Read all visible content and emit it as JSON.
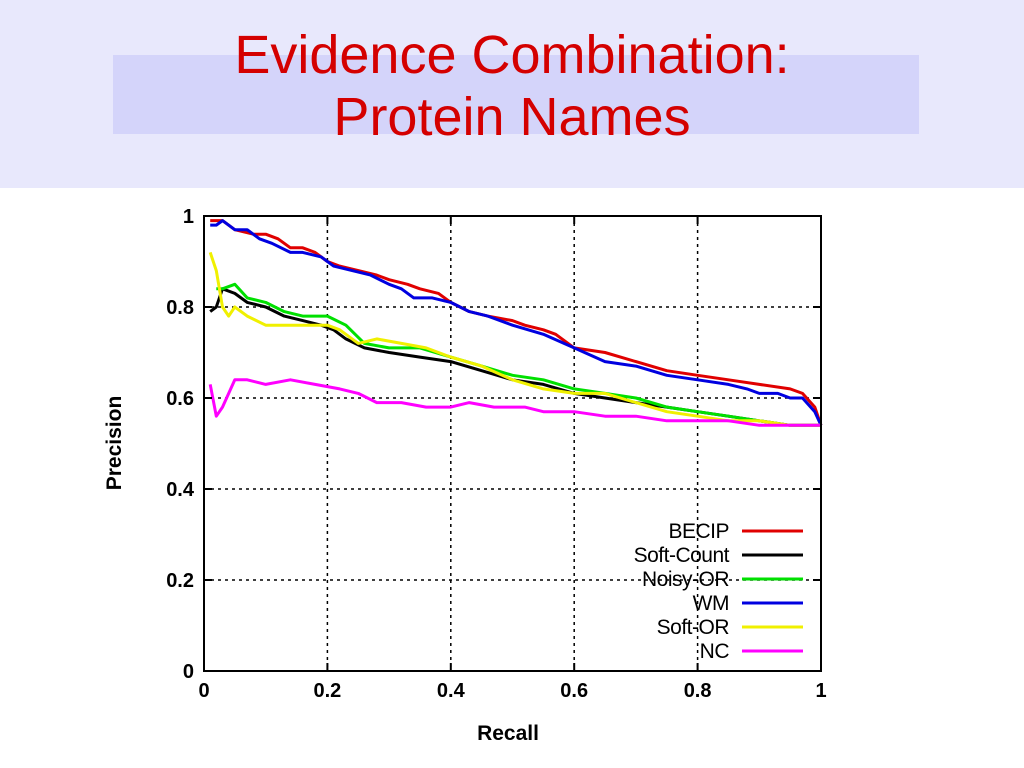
{
  "slide": {
    "title_line1": "Evidence Combination:",
    "title_line2": "Protein Names"
  },
  "chart_data": {
    "type": "line",
    "xlabel": "Recall",
    "ylabel": "Precision",
    "xlim": [
      0,
      1
    ],
    "ylim": [
      0,
      1
    ],
    "xticks": [
      "0",
      "0.2",
      "0.4",
      "0.6",
      "0.8",
      "1"
    ],
    "yticks": [
      "0",
      "0.2",
      "0.4",
      "0.6",
      "0.8",
      "1"
    ],
    "grid": true,
    "legend_position": "bottom-right",
    "series": [
      {
        "name": "BECIP",
        "color": "#e00000",
        "points": [
          [
            0.01,
            0.99
          ],
          [
            0.03,
            0.99
          ],
          [
            0.05,
            0.97
          ],
          [
            0.08,
            0.96
          ],
          [
            0.1,
            0.96
          ],
          [
            0.12,
            0.95
          ],
          [
            0.14,
            0.93
          ],
          [
            0.16,
            0.93
          ],
          [
            0.18,
            0.92
          ],
          [
            0.2,
            0.9
          ],
          [
            0.22,
            0.89
          ],
          [
            0.25,
            0.88
          ],
          [
            0.28,
            0.87
          ],
          [
            0.3,
            0.86
          ],
          [
            0.33,
            0.85
          ],
          [
            0.35,
            0.84
          ],
          [
            0.38,
            0.83
          ],
          [
            0.4,
            0.81
          ],
          [
            0.43,
            0.79
          ],
          [
            0.46,
            0.78
          ],
          [
            0.5,
            0.77
          ],
          [
            0.52,
            0.76
          ],
          [
            0.55,
            0.75
          ],
          [
            0.57,
            0.74
          ],
          [
            0.6,
            0.71
          ],
          [
            0.65,
            0.7
          ],
          [
            0.7,
            0.68
          ],
          [
            0.75,
            0.66
          ],
          [
            0.8,
            0.65
          ],
          [
            0.85,
            0.64
          ],
          [
            0.9,
            0.63
          ],
          [
            0.95,
            0.62
          ],
          [
            0.97,
            0.61
          ],
          [
            0.99,
            0.58
          ],
          [
            1.0,
            0.54
          ]
        ]
      },
      {
        "name": "Soft-Count",
        "color": "#000000",
        "points": [
          [
            0.01,
            0.79
          ],
          [
            0.02,
            0.8
          ],
          [
            0.03,
            0.84
          ],
          [
            0.05,
            0.83
          ],
          [
            0.07,
            0.81
          ],
          [
            0.1,
            0.8
          ],
          [
            0.13,
            0.78
          ],
          [
            0.16,
            0.77
          ],
          [
            0.19,
            0.76
          ],
          [
            0.21,
            0.75
          ],
          [
            0.23,
            0.73
          ],
          [
            0.26,
            0.71
          ],
          [
            0.3,
            0.7
          ],
          [
            0.35,
            0.69
          ],
          [
            0.4,
            0.68
          ],
          [
            0.45,
            0.66
          ],
          [
            0.5,
            0.64
          ],
          [
            0.55,
            0.63
          ],
          [
            0.6,
            0.61
          ],
          [
            0.65,
            0.6
          ],
          [
            0.7,
            0.59
          ],
          [
            0.75,
            0.58
          ],
          [
            0.8,
            0.57
          ],
          [
            0.85,
            0.56
          ],
          [
            0.9,
            0.55
          ],
          [
            0.95,
            0.54
          ],
          [
            1.0,
            0.54
          ]
        ]
      },
      {
        "name": "Noisy-OR",
        "color": "#00e000",
        "points": [
          [
            0.02,
            0.84
          ],
          [
            0.03,
            0.84
          ],
          [
            0.05,
            0.85
          ],
          [
            0.07,
            0.82
          ],
          [
            0.1,
            0.81
          ],
          [
            0.13,
            0.79
          ],
          [
            0.16,
            0.78
          ],
          [
            0.2,
            0.78
          ],
          [
            0.23,
            0.76
          ],
          [
            0.26,
            0.72
          ],
          [
            0.3,
            0.71
          ],
          [
            0.35,
            0.71
          ],
          [
            0.4,
            0.69
          ],
          [
            0.45,
            0.67
          ],
          [
            0.5,
            0.65
          ],
          [
            0.55,
            0.64
          ],
          [
            0.6,
            0.62
          ],
          [
            0.65,
            0.61
          ],
          [
            0.7,
            0.6
          ],
          [
            0.75,
            0.58
          ],
          [
            0.8,
            0.57
          ],
          [
            0.85,
            0.56
          ],
          [
            0.9,
            0.55
          ],
          [
            0.95,
            0.54
          ],
          [
            1.0,
            0.54
          ]
        ]
      },
      {
        "name": "WM",
        "color": "#0000e0",
        "points": [
          [
            0.01,
            0.98
          ],
          [
            0.02,
            0.98
          ],
          [
            0.03,
            0.99
          ],
          [
            0.05,
            0.97
          ],
          [
            0.07,
            0.97
          ],
          [
            0.09,
            0.95
          ],
          [
            0.11,
            0.94
          ],
          [
            0.14,
            0.92
          ],
          [
            0.16,
            0.92
          ],
          [
            0.19,
            0.91
          ],
          [
            0.21,
            0.89
          ],
          [
            0.24,
            0.88
          ],
          [
            0.27,
            0.87
          ],
          [
            0.3,
            0.85
          ],
          [
            0.32,
            0.84
          ],
          [
            0.34,
            0.82
          ],
          [
            0.37,
            0.82
          ],
          [
            0.4,
            0.81
          ],
          [
            0.43,
            0.79
          ],
          [
            0.46,
            0.78
          ],
          [
            0.5,
            0.76
          ],
          [
            0.55,
            0.74
          ],
          [
            0.6,
            0.71
          ],
          [
            0.65,
            0.68
          ],
          [
            0.7,
            0.67
          ],
          [
            0.75,
            0.65
          ],
          [
            0.8,
            0.64
          ],
          [
            0.85,
            0.63
          ],
          [
            0.88,
            0.62
          ],
          [
            0.9,
            0.61
          ],
          [
            0.93,
            0.61
          ],
          [
            0.95,
            0.6
          ],
          [
            0.97,
            0.6
          ],
          [
            0.99,
            0.57
          ],
          [
            1.0,
            0.54
          ]
        ]
      },
      {
        "name": "Soft-OR",
        "color": "#f0f000",
        "points": [
          [
            0.01,
            0.92
          ],
          [
            0.02,
            0.88
          ],
          [
            0.03,
            0.8
          ],
          [
            0.04,
            0.78
          ],
          [
            0.05,
            0.8
          ],
          [
            0.07,
            0.78
          ],
          [
            0.1,
            0.76
          ],
          [
            0.15,
            0.76
          ],
          [
            0.2,
            0.76
          ],
          [
            0.22,
            0.75
          ],
          [
            0.25,
            0.72
          ],
          [
            0.28,
            0.73
          ],
          [
            0.32,
            0.72
          ],
          [
            0.36,
            0.71
          ],
          [
            0.4,
            0.69
          ],
          [
            0.45,
            0.67
          ],
          [
            0.5,
            0.64
          ],
          [
            0.55,
            0.62
          ],
          [
            0.6,
            0.61
          ],
          [
            0.65,
            0.61
          ],
          [
            0.7,
            0.59
          ],
          [
            0.75,
            0.57
          ],
          [
            0.8,
            0.56
          ],
          [
            0.85,
            0.55
          ],
          [
            0.9,
            0.55
          ],
          [
            0.95,
            0.54
          ],
          [
            1.0,
            0.54
          ]
        ]
      },
      {
        "name": "NC",
        "color": "#ff00ff",
        "points": [
          [
            0.01,
            0.63
          ],
          [
            0.02,
            0.56
          ],
          [
            0.03,
            0.58
          ],
          [
            0.05,
            0.64
          ],
          [
            0.07,
            0.64
          ],
          [
            0.1,
            0.63
          ],
          [
            0.14,
            0.64
          ],
          [
            0.18,
            0.63
          ],
          [
            0.22,
            0.62
          ],
          [
            0.25,
            0.61
          ],
          [
            0.28,
            0.59
          ],
          [
            0.32,
            0.59
          ],
          [
            0.36,
            0.58
          ],
          [
            0.4,
            0.58
          ],
          [
            0.43,
            0.59
          ],
          [
            0.47,
            0.58
          ],
          [
            0.52,
            0.58
          ],
          [
            0.55,
            0.57
          ],
          [
            0.6,
            0.57
          ],
          [
            0.65,
            0.56
          ],
          [
            0.7,
            0.56
          ],
          [
            0.75,
            0.55
          ],
          [
            0.8,
            0.55
          ],
          [
            0.85,
            0.55
          ],
          [
            0.9,
            0.54
          ],
          [
            0.95,
            0.54
          ],
          [
            1.0,
            0.54
          ]
        ]
      }
    ]
  }
}
